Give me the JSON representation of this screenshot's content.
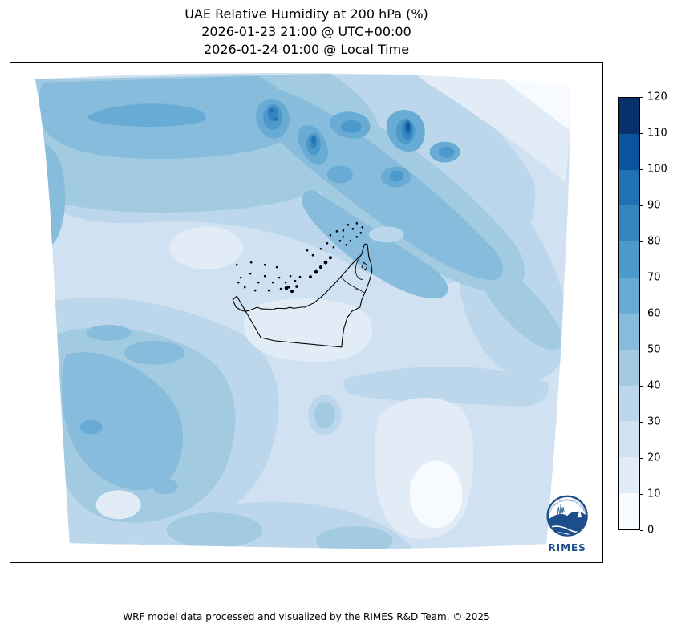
{
  "title": {
    "line1": "UAE Relative Humidity at 200 hPa (%)",
    "line2": "2026-01-23 21:00 @ UTC+00:00",
    "line3": "2026-01-24 01:00 @ Local Time"
  },
  "footer": {
    "text": "WRF model data processed and visualized by the RIMES R&D Team. © 2025"
  },
  "colorbar": {
    "min": 0,
    "max": 120,
    "step": 10,
    "ticks": [
      0,
      10,
      20,
      30,
      40,
      50,
      60,
      70,
      80,
      90,
      100,
      110,
      120
    ],
    "level_colors": [
      "#f7fbff",
      "#e1ecf7",
      "#d0e1f2",
      "#bcd7eb",
      "#a2cbe2",
      "#87bcdc",
      "#68acd5",
      "#4d99ca",
      "#3585c0",
      "#2171b5",
      "#0a549e",
      "#08306b"
    ]
  },
  "logo": {
    "text": "RIMES",
    "ring_text": "Regional Integrated Multi-Hazard Early Warning System",
    "color": "#1c4e8c"
  },
  "map": {
    "country_outline": "United Arab Emirates",
    "outline_color": "#000000",
    "outside_domain_color": "#ffffff"
  },
  "chart_data": {
    "type": "filled-contour-map",
    "title": "UAE Relative Humidity at 200 hPa (%)",
    "subtitle_utc": "2026-01-23 21:00 @ UTC+00:00",
    "subtitle_local": "2026-01-24 01:00 @ Local Time",
    "variable": "Relative Humidity",
    "pressure_level_hPa": 200,
    "units": "%",
    "model": "WRF",
    "region": "UAE and surrounding Gulf region",
    "domain_shape": "curved fan (conic map projection), white outside domain",
    "colormap": "Blues, 12 discrete bins",
    "levels": [
      0,
      10,
      20,
      30,
      40,
      50,
      60,
      70,
      80,
      90,
      100,
      110,
      120
    ],
    "level_colors": [
      "#f7fbff",
      "#e1ecf7",
      "#d0e1f2",
      "#bcd7eb",
      "#a2cbe2",
      "#87bcdc",
      "#68acd5",
      "#4d99ca",
      "#3585c0",
      "#2171b5",
      "#0a549e",
      "#08306b"
    ],
    "legend_position": "vertical colorbar on right, ticks every 10 from 0 to 120",
    "features": [
      {
        "area": "parallel NW-SE diagonal bands northeast of UAE",
        "humidity_pct": "60-110, small darkest core ~100-110"
      },
      {
        "area": "elongated band across upper-left",
        "humidity_pct": "50-70"
      },
      {
        "area": "left edge strip and southwest quadrant blobs",
        "humidity_pct": "40-60"
      },
      {
        "area": "center around UAE coastline",
        "humidity_pct": "10-30"
      },
      {
        "area": "top-right corner wedge",
        "humidity_pct": "0-20"
      },
      {
        "area": "bright patch lower-center-right",
        "humidity_pct": "0-20"
      },
      {
        "area": "general background",
        "humidity_pct": "20-40"
      }
    ]
  }
}
